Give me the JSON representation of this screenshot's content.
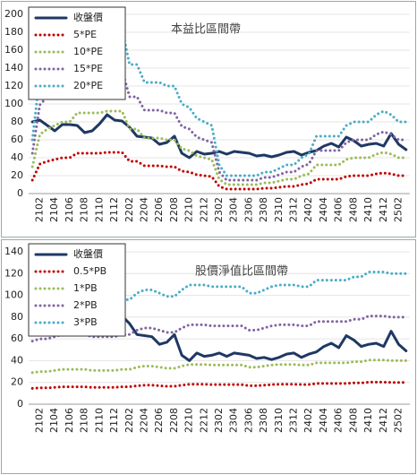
{
  "chart_data": [
    {
      "type": "line",
      "title": "本益比區間帶",
      "categories": [
        null,
        "2102",
        null,
        "2104",
        null,
        "2106",
        null,
        "2108",
        null,
        "2110",
        null,
        "2112",
        null,
        "2202",
        null,
        "2204",
        null,
        "2206",
        null,
        "2208",
        null,
        "2210",
        null,
        "2212",
        null,
        "2302",
        null,
        "2304",
        null,
        "2306",
        null,
        "2308",
        null,
        "2310",
        null,
        "2312",
        null,
        "2402",
        null,
        "2404",
        null,
        "2406",
        null,
        "2408",
        null,
        "2410",
        null,
        "2412",
        null,
        "2502",
        null
      ],
      "ylim": [
        0,
        200
      ],
      "yticks": [
        0,
        20,
        40,
        60,
        80,
        100,
        120,
        140,
        160,
        180,
        200
      ],
      "grid": true,
      "legend": "upper left",
      "series": [
        {
          "name": "收盤價",
          "color": "#1f3864",
          "values": [
            80,
            82,
            76,
            70,
            77,
            77,
            76,
            68,
            70,
            78,
            88,
            82,
            81,
            74,
            64,
            63,
            62,
            55,
            57,
            64,
            45,
            40,
            47,
            44,
            45,
            47,
            44,
            47,
            46,
            45,
            42,
            43,
            41,
            43,
            46,
            47,
            43,
            46,
            48,
            53,
            56,
            52,
            63,
            59,
            53,
            55,
            56,
            53,
            67,
            55,
            49
          ]
        },
        {
          "name": "5*PE",
          "color": "#c00000",
          "values": [
            15,
            33,
            36,
            38,
            40,
            40,
            45,
            45,
            45,
            45,
            46,
            46,
            46,
            36,
            36,
            31,
            31,
            31,
            30,
            30,
            25,
            24,
            21,
            20,
            19,
            8,
            5,
            5,
            5,
            5,
            5,
            6,
            6,
            7,
            8,
            8,
            10,
            11,
            16,
            16,
            16,
            16,
            19,
            20,
            20,
            20,
            22,
            23,
            22,
            20,
            20
          ]
        },
        {
          "name": "10*PE",
          "color": "#9bbb59",
          "values": [
            30,
            66,
            72,
            76,
            80,
            80,
            90,
            90,
            90,
            90,
            92,
            92,
            92,
            72,
            72,
            62,
            62,
            62,
            60,
            60,
            50,
            48,
            42,
            40,
            38,
            16,
            10,
            10,
            10,
            10,
            10,
            12,
            12,
            14,
            16,
            16,
            20,
            22,
            32,
            32,
            32,
            32,
            38,
            40,
            40,
            40,
            44,
            46,
            44,
            40,
            40
          ]
        },
        {
          "name": "15*PE",
          "color": "#8064a2",
          "values": [
            45,
            99,
            108,
            114,
            120,
            120,
            135,
            135,
            135,
            135,
            138,
            138,
            138,
            108,
            108,
            93,
            93,
            93,
            90,
            90,
            75,
            72,
            63,
            60,
            57,
            24,
            15,
            15,
            15,
            15,
            15,
            18,
            18,
            21,
            24,
            24,
            30,
            33,
            48,
            48,
            48,
            48,
            57,
            60,
            60,
            60,
            66,
            69,
            66,
            60,
            60
          ]
        },
        {
          "name": "20*PE",
          "color": "#4bacc6",
          "values": [
            60,
            132,
            144,
            152,
            160,
            160,
            180,
            180,
            180,
            180,
            184,
            184,
            184,
            144,
            144,
            124,
            124,
            124,
            120,
            120,
            100,
            96,
            84,
            80,
            76,
            32,
            20,
            20,
            20,
            20,
            20,
            24,
            24,
            28,
            32,
            32,
            40,
            44,
            64,
            64,
            64,
            64,
            76,
            80,
            80,
            80,
            88,
            92,
            88,
            80,
            80
          ]
        }
      ]
    },
    {
      "type": "line",
      "title": "股價淨值比區間帶",
      "categories": [
        null,
        "2102",
        null,
        "2104",
        null,
        "2106",
        null,
        "2108",
        null,
        "2110",
        null,
        "2112",
        null,
        "2202",
        null,
        "2204",
        null,
        "2206",
        null,
        "2208",
        null,
        "2210",
        null,
        "2212",
        null,
        "2302",
        null,
        "2304",
        null,
        "2306",
        null,
        "2308",
        null,
        "2310",
        null,
        "2312",
        null,
        "2402",
        null,
        "2404",
        null,
        "2406",
        null,
        "2408",
        null,
        "2410",
        null,
        "2412",
        null,
        "2502",
        null
      ],
      "ylim": [
        0,
        140
      ],
      "yticks": [
        0,
        20,
        40,
        60,
        80,
        100,
        120,
        140
      ],
      "grid": true,
      "legend": "upper left",
      "series": [
        {
          "name": "收盤價",
          "color": "#1f3864",
          "values": [
            80,
            82,
            76,
            70,
            77,
            77,
            76,
            68,
            70,
            78,
            88,
            82,
            81,
            74,
            64,
            63,
            62,
            55,
            57,
            64,
            45,
            40,
            47,
            44,
            45,
            47,
            44,
            47,
            46,
            45,
            42,
            43,
            41,
            43,
            46,
            47,
            43,
            46,
            48,
            53,
            56,
            52,
            63,
            59,
            53,
            55,
            56,
            53,
            67,
            55,
            49
          ]
        },
        {
          "name": "0.5*PB",
          "color": "#c00000",
          "values": [
            14.5,
            15,
            15,
            15.5,
            16,
            16,
            16,
            16,
            15.5,
            15.5,
            15.5,
            15.5,
            16,
            16,
            17,
            17.5,
            17.5,
            17,
            16.5,
            16.5,
            17.5,
            18.25,
            18.25,
            18.25,
            18,
            18,
            18,
            18,
            18,
            17,
            17,
            17.5,
            18,
            18.25,
            18.25,
            18.25,
            18,
            18,
            19,
            19,
            19,
            19,
            19,
            19.5,
            19.5,
            20.25,
            20.25,
            20.25,
            20,
            20,
            20
          ]
        },
        {
          "name": "1*PB",
          "color": "#9bbb59",
          "values": [
            29,
            30,
            30,
            31,
            32,
            32,
            32,
            32,
            31,
            31,
            31,
            31,
            32,
            32,
            34,
            35,
            35,
            34,
            33,
            33,
            35,
            36.5,
            36.5,
            36.5,
            36,
            36,
            36,
            36,
            36,
            34,
            34,
            35,
            36,
            36.5,
            36.5,
            36.5,
            36,
            36,
            38,
            38,
            38,
            38,
            38,
            39,
            39,
            40.5,
            40.5,
            40.5,
            40,
            40,
            40
          ]
        },
        {
          "name": "2*PB",
          "color": "#8064a2",
          "values": [
            58,
            60,
            60,
            62,
            64,
            64,
            64,
            64,
            62,
            62,
            62,
            62,
            64,
            64,
            68,
            70,
            70,
            68,
            66,
            66,
            70,
            73,
            73,
            73,
            72,
            72,
            72,
            72,
            72,
            68,
            68,
            70,
            72,
            73,
            73,
            73,
            72,
            72,
            76,
            76,
            76,
            76,
            76,
            78,
            78,
            81,
            81,
            81,
            80,
            80,
            80
          ]
        },
        {
          "name": "3*PB",
          "color": "#4bacc6",
          "values": [
            87,
            90,
            90,
            93,
            96,
            96,
            96,
            96,
            93,
            93,
            93,
            93,
            96,
            96,
            102,
            105,
            105,
            102,
            99,
            99,
            105,
            109.5,
            109.5,
            109.5,
            108,
            108,
            108,
            108,
            108,
            102,
            102,
            105,
            108,
            109.5,
            109.5,
            109.5,
            108,
            108,
            114,
            114,
            114,
            114,
            114,
            117,
            117,
            121.5,
            121.5,
            121.5,
            120,
            120,
            120
          ]
        }
      ]
    }
  ]
}
